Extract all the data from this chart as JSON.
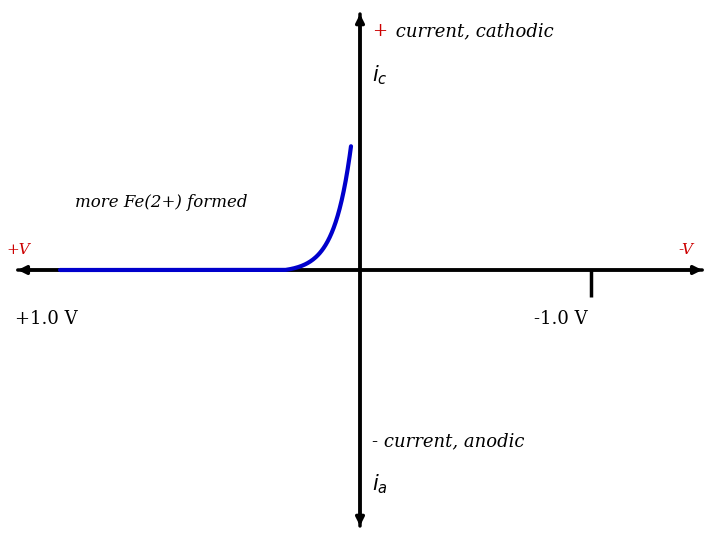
{
  "background_color": "#ffffff",
  "curve_color": "#0000cc",
  "curve_linewidth": 3.0,
  "top_plus_color": "#cc0000",
  "text_color": "#000000",
  "left_right_label_color": "#cc0000",
  "top_line1_text": " current, cathodic",
  "top_line1_plus": "+",
  "top_line2_text": "$i_c$",
  "bottom_line1_text": "- current, anodic",
  "bottom_line2_text": "$i_a$",
  "left_label": "+V",
  "right_label": "-V",
  "bottom_left_label": "+1.0 V",
  "bottom_right_label": "-1.0 V",
  "annotation_text": "more Fe(2+) formed",
  "xlim": [
    -1.2,
    1.2
  ],
  "ylim": [
    -1.2,
    1.2
  ],
  "axis_lw": 2.5,
  "arrow_size": 12
}
